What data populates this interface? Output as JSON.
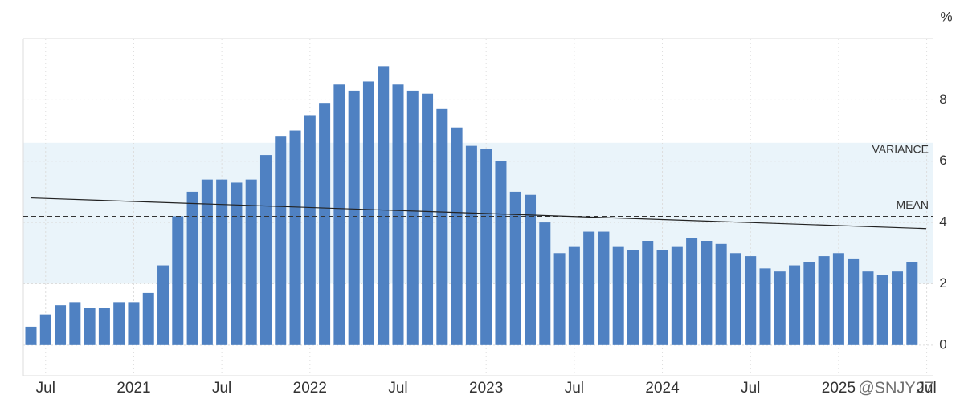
{
  "chart_data": {
    "type": "bar",
    "unit": "%",
    "categories": [
      null,
      "Jul",
      null,
      null,
      null,
      null,
      null,
      "2021",
      null,
      null,
      null,
      null,
      null,
      "Jul",
      null,
      null,
      null,
      null,
      null,
      "2022",
      null,
      null,
      null,
      null,
      null,
      "Jul",
      null,
      null,
      null,
      null,
      null,
      "2023",
      null,
      null,
      null,
      null,
      null,
      "Jul",
      null,
      null,
      null,
      null,
      null,
      "2024",
      null,
      null,
      null,
      null,
      null,
      "Jul",
      null,
      null,
      null,
      null,
      null,
      "2025",
      null,
      null,
      null,
      null,
      null,
      "Jul"
    ],
    "values": [
      0.6,
      1.0,
      1.3,
      1.4,
      1.2,
      1.2,
      1.4,
      1.4,
      1.7,
      2.6,
      4.2,
      5.0,
      5.4,
      5.4,
      5.3,
      5.4,
      6.2,
      6.8,
      7.0,
      7.5,
      7.9,
      8.5,
      8.3,
      8.6,
      9.1,
      8.5,
      8.3,
      8.2,
      7.7,
      7.1,
      6.5,
      6.4,
      6.0,
      5.0,
      4.9,
      4.0,
      3.0,
      3.2,
      3.7,
      3.7,
      3.2,
      3.1,
      3.4,
      3.1,
      3.2,
      3.5,
      3.4,
      3.3,
      3.0,
      2.9,
      2.5,
      2.4,
      2.6,
      2.7,
      2.9,
      3.0,
      2.8,
      2.4,
      2.3,
      2.4,
      2.7,
      null
    ],
    "color": "#4f81c2",
    "ylim": [
      -1,
      10
    ],
    "yticks": [
      0,
      2,
      4,
      6,
      8
    ],
    "grid": true,
    "mean": {
      "label": "MEAN",
      "value": 4.2
    },
    "variance": {
      "label": "VARIANCE",
      "range": [
        2.0,
        6.6
      ]
    },
    "trend": [
      4.8,
      3.8
    ],
    "watermark": "@SNJY27"
  }
}
